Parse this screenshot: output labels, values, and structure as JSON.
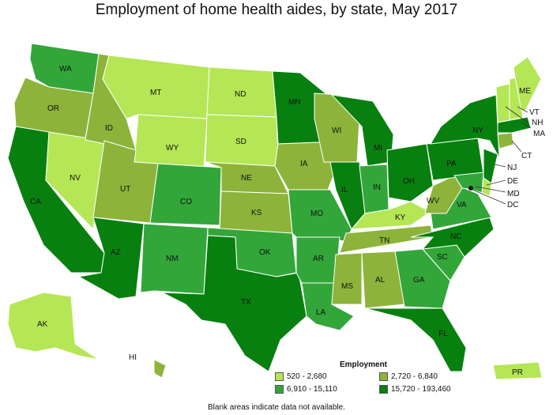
{
  "title": "Employment of home health aides, by state, May 2017",
  "legend": {
    "title": "Employment",
    "items": [
      {
        "label": "520 - 2,680",
        "color": "#b5e655"
      },
      {
        "label": "2,720 - 6,840",
        "color": "#8db33a"
      },
      {
        "label": "6,910 - 15,110",
        "color": "#33a63a"
      },
      {
        "label": "15,720 - 193,460",
        "color": "#08800f"
      }
    ]
  },
  "footnote": "Blank areas indicate data not available.",
  "states": [
    {
      "code": "WA",
      "cls": 2
    },
    {
      "code": "OR",
      "cls": 1
    },
    {
      "code": "CA",
      "cls": 3
    },
    {
      "code": "NV",
      "cls": 0
    },
    {
      "code": "ID",
      "cls": 1
    },
    {
      "code": "MT",
      "cls": 0
    },
    {
      "code": "WY",
      "cls": 0
    },
    {
      "code": "UT",
      "cls": 1
    },
    {
      "code": "AZ",
      "cls": 3
    },
    {
      "code": "CO",
      "cls": 2
    },
    {
      "code": "NM",
      "cls": 2
    },
    {
      "code": "ND",
      "cls": 0
    },
    {
      "code": "SD",
      "cls": 0
    },
    {
      "code": "NE",
      "cls": 1
    },
    {
      "code": "KS",
      "cls": 1
    },
    {
      "code": "OK",
      "cls": 2
    },
    {
      "code": "TX",
      "cls": 3
    },
    {
      "code": "MN",
      "cls": 3
    },
    {
      "code": "IA",
      "cls": 1
    },
    {
      "code": "MO",
      "cls": 2
    },
    {
      "code": "AR",
      "cls": 2
    },
    {
      "code": "LA",
      "cls": 2
    },
    {
      "code": "WI",
      "cls": 1
    },
    {
      "code": "IL",
      "cls": 3
    },
    {
      "code": "MI",
      "cls": 3
    },
    {
      "code": "IN",
      "cls": 2
    },
    {
      "code": "OH",
      "cls": 3
    },
    {
      "code": "KY",
      "cls": 0
    },
    {
      "code": "TN",
      "cls": 1
    },
    {
      "code": "MS",
      "cls": 1
    },
    {
      "code": "AL",
      "cls": 1
    },
    {
      "code": "GA",
      "cls": 2
    },
    {
      "code": "FL",
      "cls": 3
    },
    {
      "code": "SC",
      "cls": 2
    },
    {
      "code": "NC",
      "cls": 3
    },
    {
      "code": "VA",
      "cls": 2
    },
    {
      "code": "WV",
      "cls": 1
    },
    {
      "code": "PA",
      "cls": 3
    },
    {
      "code": "NY",
      "cls": 3
    },
    {
      "code": "NJ",
      "cls": 3
    },
    {
      "code": "DE",
      "cls": 0
    },
    {
      "code": "MD",
      "cls": 2
    },
    {
      "code": "DC",
      "cls": 2
    },
    {
      "code": "CT",
      "cls": 1
    },
    {
      "code": "MA",
      "cls": 3
    },
    {
      "code": "VT",
      "cls": 0
    },
    {
      "code": "NH",
      "cls": 0
    },
    {
      "code": "ME",
      "cls": 0
    },
    {
      "code": "AK",
      "cls": 0
    },
    {
      "code": "HI",
      "cls": 1
    },
    {
      "code": "PR",
      "cls": 0
    }
  ]
}
